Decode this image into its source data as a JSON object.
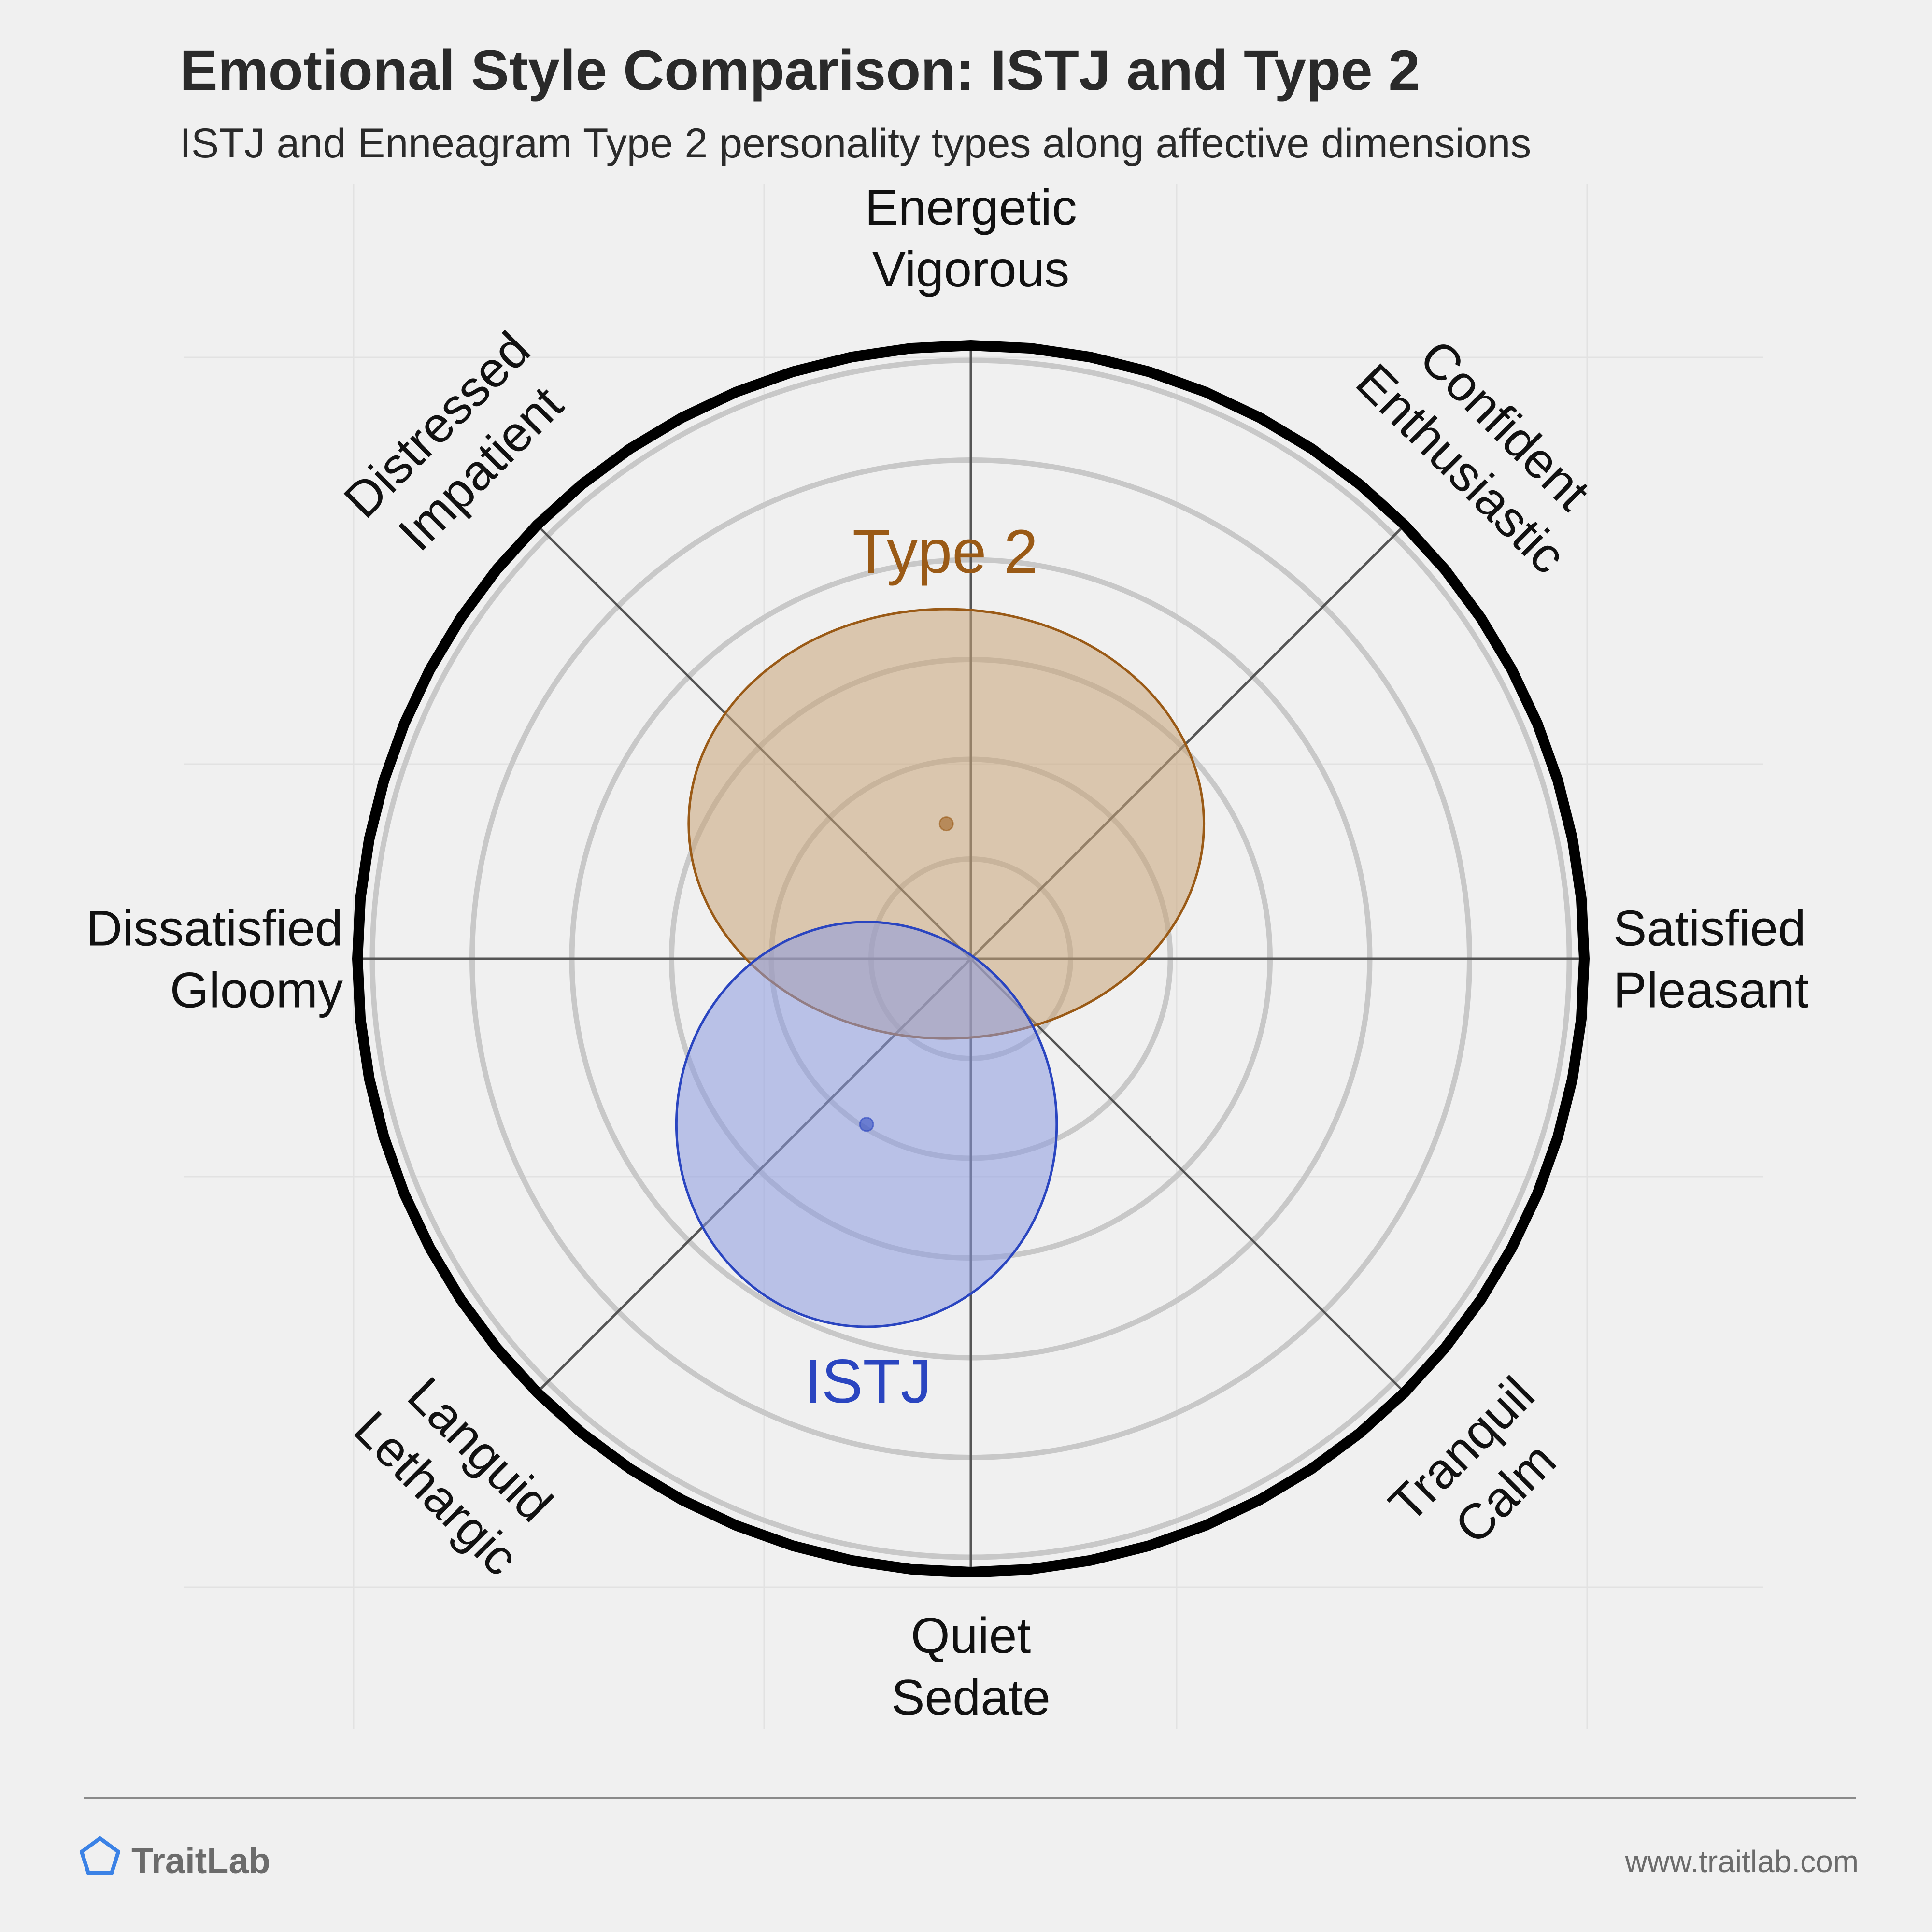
{
  "title": "Emotional Style Comparison: ISTJ and Type 2",
  "subtitle": "ISTJ and Enneagram Type 2 personality types along affective dimensions",
  "footer": {
    "brand": "TraitLab",
    "url": "www.traitlab.com"
  },
  "colors": {
    "background": "#f0f0f0",
    "type2": "#9a5a16",
    "type2_fill": "#c9a478",
    "istj": "#2a45c0",
    "istj_fill": "#8c9be0",
    "logo": "#3b82e6"
  },
  "icons": {
    "logo": "pentagon-logo-icon"
  },
  "chart_data": {
    "type": "scatter",
    "subtype": "circumplex",
    "title": "Emotional Style Comparison: ISTJ and Type 2",
    "subtitle": "ISTJ and Enneagram Type 2 personality types along affective dimensions",
    "axes": [
      {
        "lines": [
          "Energetic",
          "Vigorous"
        ],
        "angle_deg": 90
      },
      {
        "lines": [
          "Confident",
          "Enthusiastic"
        ],
        "angle_deg": 45
      },
      {
        "lines": [
          "Satisfied",
          "Pleasant"
        ],
        "angle_deg": 0
      },
      {
        "lines": [
          "Tranquil",
          "Calm"
        ],
        "angle_deg": -45
      },
      {
        "lines": [
          "Quiet",
          "Sedate"
        ],
        "angle_deg": -90
      },
      {
        "lines": [
          "Languid",
          "Lethargic"
        ],
        "angle_deg": -135
      },
      {
        "lines": [
          "Dissatisfied",
          "Gloomy"
        ],
        "angle_deg": 180
      },
      {
        "lines": [
          "Distressed",
          "Impatient"
        ],
        "angle_deg": 135
      }
    ],
    "x_range": [
      -1,
      1
    ],
    "y_range": [
      -1,
      1
    ],
    "rings": 6,
    "series": [
      {
        "name": "Type 2",
        "x": -0.04,
        "y": 0.22,
        "rx": 0.42,
        "ry": 0.35,
        "color": "#9a5a16"
      },
      {
        "name": "ISTJ",
        "x": -0.17,
        "y": -0.27,
        "rx": 0.31,
        "ry": 0.33,
        "color": "#2a45c0"
      }
    ]
  }
}
